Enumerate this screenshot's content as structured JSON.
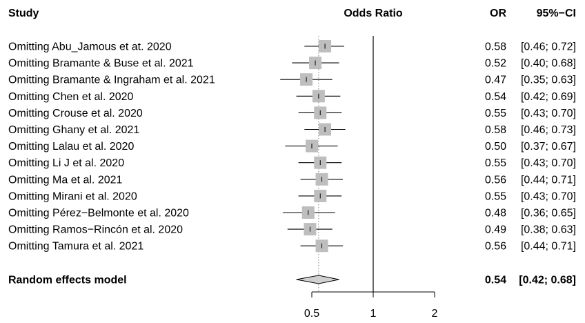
{
  "chart_data": {
    "type": "forest",
    "headers": {
      "study": "Study",
      "effect": "Odds Ratio",
      "or": "OR",
      "ci": "95%−CI"
    },
    "scale": "log",
    "xlim": [
      0.4,
      2.2
    ],
    "xticks": [
      0.5,
      1,
      2
    ],
    "xtick_labels": [
      "0.5",
      "1",
      "2"
    ],
    "reference_line": 1,
    "pooled_line": 0.54,
    "studies": [
      {
        "label": "Omitting Abu_Jamous et at. 2020",
        "or": 0.58,
        "lo": 0.46,
        "hi": 0.72,
        "or_text": "0.58",
        "ci_text": "[0.46; 0.72]"
      },
      {
        "label": "Omitting Bramante & Buse et al. 2021",
        "or": 0.52,
        "lo": 0.4,
        "hi": 0.68,
        "or_text": "0.52",
        "ci_text": "[0.40; 0.68]"
      },
      {
        "label": "Omitting Bramante & Ingraham et al. 2021",
        "or": 0.47,
        "lo": 0.35,
        "hi": 0.63,
        "or_text": "0.47",
        "ci_text": "[0.35; 0.63]"
      },
      {
        "label": "Omitting Chen et al. 2020",
        "or": 0.54,
        "lo": 0.42,
        "hi": 0.69,
        "or_text": "0.54",
        "ci_text": "[0.42; 0.69]"
      },
      {
        "label": "Omitting Crouse et al. 2020",
        "or": 0.55,
        "lo": 0.43,
        "hi": 0.7,
        "or_text": "0.55",
        "ci_text": "[0.43; 0.70]"
      },
      {
        "label": "Omitting Ghany et al. 2021",
        "or": 0.58,
        "lo": 0.46,
        "hi": 0.73,
        "or_text": "0.58",
        "ci_text": "[0.46; 0.73]"
      },
      {
        "label": "Omitting Lalau et al. 2020",
        "or": 0.5,
        "lo": 0.37,
        "hi": 0.67,
        "or_text": "0.50",
        "ci_text": "[0.37; 0.67]"
      },
      {
        "label": "Omitting Li J et al. 2020",
        "or": 0.55,
        "lo": 0.43,
        "hi": 0.7,
        "or_text": "0.55",
        "ci_text": "[0.43; 0.70]"
      },
      {
        "label": "Omitting Ma et al. 2021",
        "or": 0.56,
        "lo": 0.44,
        "hi": 0.71,
        "or_text": "0.56",
        "ci_text": "[0.44; 0.71]"
      },
      {
        "label": "Omitting Mirani et al. 2020",
        "or": 0.55,
        "lo": 0.43,
        "hi": 0.7,
        "or_text": "0.55",
        "ci_text": "[0.43; 0.70]"
      },
      {
        "label": "Omitting Pérez−Belmonte et al. 2020",
        "or": 0.48,
        "lo": 0.36,
        "hi": 0.65,
        "or_text": "0.48",
        "ci_text": "[0.36; 0.65]"
      },
      {
        "label": "Omitting Ramos−Rincón et al. 2020",
        "or": 0.49,
        "lo": 0.38,
        "hi": 0.63,
        "or_text": "0.49",
        "ci_text": "[0.38; 0.63]"
      },
      {
        "label": "Omitting Tamura et al. 2021",
        "or": 0.56,
        "lo": 0.44,
        "hi": 0.71,
        "or_text": "0.56",
        "ci_text": "[0.44; 0.71]"
      }
    ],
    "pooled": {
      "label": "Random effects model",
      "or": 0.54,
      "lo": 0.42,
      "hi": 0.68,
      "or_text": "0.54",
      "ci_text": "[0.42; 0.68]"
    },
    "colors": {
      "square": "#bebebe",
      "diamond": "#d0d0d0",
      "line": "#000000",
      "dotted": "#808080"
    }
  }
}
